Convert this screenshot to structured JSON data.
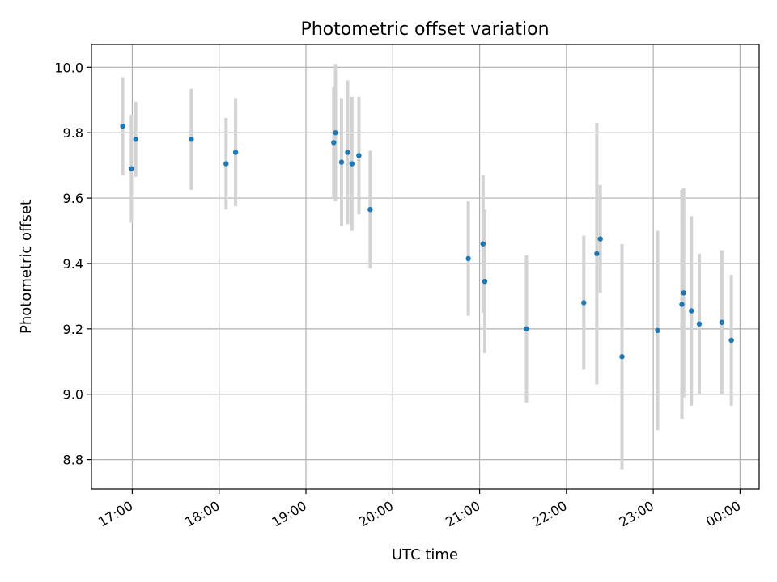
{
  "chart_data": {
    "type": "scatter",
    "title": "Photometric offset variation",
    "xlabel": "UTC time",
    "ylabel": "Photometric offset",
    "grid": true,
    "legend": null,
    "x_unit": "hours since 16:00 UTC",
    "xlim": [
      0.53,
      8.22
    ],
    "ylim": [
      8.71,
      10.07
    ],
    "x_ticks": [
      {
        "value": 1,
        "label": "17:00"
      },
      {
        "value": 2,
        "label": "18:00"
      },
      {
        "value": 3,
        "label": "19:00"
      },
      {
        "value": 4,
        "label": "20:00"
      },
      {
        "value": 5,
        "label": "21:00"
      },
      {
        "value": 6,
        "label": "22:00"
      },
      {
        "value": 7,
        "label": "23:00"
      },
      {
        "value": 8,
        "label": "00:00"
      }
    ],
    "y_ticks": [
      {
        "value": 8.8,
        "label": "8.8"
      },
      {
        "value": 9.0,
        "label": "9.0"
      },
      {
        "value": 9.2,
        "label": "9.2"
      },
      {
        "value": 9.4,
        "label": "9.4"
      },
      {
        "value": 9.6,
        "label": "9.6"
      },
      {
        "value": 9.8,
        "label": "9.8"
      },
      {
        "value": 10.0,
        "label": "10.0"
      }
    ],
    "series": [
      {
        "name": "offset",
        "point_color": "#1f77b4",
        "errorbar_color": "#d3d3d3",
        "points": [
          {
            "x": 0.89,
            "y": 9.82,
            "yerr": 0.15
          },
          {
            "x": 0.99,
            "y": 9.69,
            "yerr": 0.165
          },
          {
            "x": 1.04,
            "y": 9.78,
            "yerr": 0.115
          },
          {
            "x": 1.68,
            "y": 9.78,
            "yerr": 0.155
          },
          {
            "x": 2.08,
            "y": 9.705,
            "yerr": 0.14
          },
          {
            "x": 2.19,
            "y": 9.74,
            "yerr": 0.165
          },
          {
            "x": 3.32,
            "y": 9.77,
            "yerr": 0.17
          },
          {
            "x": 3.34,
            "y": 9.8,
            "yerr": 0.21
          },
          {
            "x": 3.41,
            "y": 9.71,
            "yerr": 0.195
          },
          {
            "x": 3.48,
            "y": 9.74,
            "yerr": 0.22
          },
          {
            "x": 3.53,
            "y": 9.705,
            "yerr": 0.205
          },
          {
            "x": 3.61,
            "y": 9.73,
            "yerr": 0.18
          },
          {
            "x": 3.74,
            "y": 9.565,
            "yerr": 0.18
          },
          {
            "x": 4.87,
            "y": 9.415,
            "yerr": 0.175
          },
          {
            "x": 5.04,
            "y": 9.46,
            "yerr": 0.21
          },
          {
            "x": 5.06,
            "y": 9.345,
            "yerr": 0.22
          },
          {
            "x": 5.54,
            "y": 9.2,
            "yerr": 0.225
          },
          {
            "x": 6.2,
            "y": 9.28,
            "yerr": 0.205
          },
          {
            "x": 6.35,
            "y": 9.43,
            "yerr": 0.4
          },
          {
            "x": 6.39,
            "y": 9.475,
            "yerr": 0.165
          },
          {
            "x": 6.64,
            "y": 9.115,
            "yerr": 0.345
          },
          {
            "x": 7.05,
            "y": 9.195,
            "yerr": 0.305
          },
          {
            "x": 7.33,
            "y": 9.275,
            "yerr": 0.35
          },
          {
            "x": 7.35,
            "y": 9.31,
            "yerr": 0.32
          },
          {
            "x": 7.44,
            "y": 9.255,
            "yerr": 0.29
          },
          {
            "x": 7.53,
            "y": 9.215,
            "yerr": 0.215
          },
          {
            "x": 7.79,
            "y": 9.22,
            "yerr": 0.22
          },
          {
            "x": 7.9,
            "y": 9.165,
            "yerr": 0.2
          }
        ]
      }
    ]
  }
}
